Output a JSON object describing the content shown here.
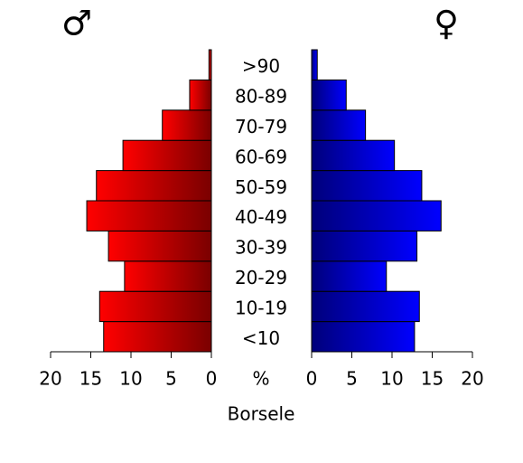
{
  "chart_data": {
    "type": "pyramid",
    "title": "Borsele",
    "unit_label": "%",
    "categories": [
      "<10",
      "10-19",
      "20-29",
      "30-39",
      "40-49",
      "50-59",
      "60-69",
      "70-79",
      "80-89",
      ">90"
    ],
    "series": [
      {
        "name": "♂",
        "color": "#ff0000",
        "side": "left",
        "values": [
          13.4,
          13.9,
          10.8,
          12.8,
          15.5,
          14.3,
          11.0,
          6.1,
          2.7,
          0.3
        ]
      },
      {
        "name": "♀",
        "color": "#0000ff",
        "side": "right",
        "values": [
          12.8,
          13.4,
          9.3,
          13.1,
          16.1,
          13.7,
          10.3,
          6.7,
          4.3,
          0.7
        ]
      }
    ],
    "xlim": [
      0,
      20
    ],
    "xticks": [
      0,
      5,
      10,
      15,
      20
    ]
  }
}
